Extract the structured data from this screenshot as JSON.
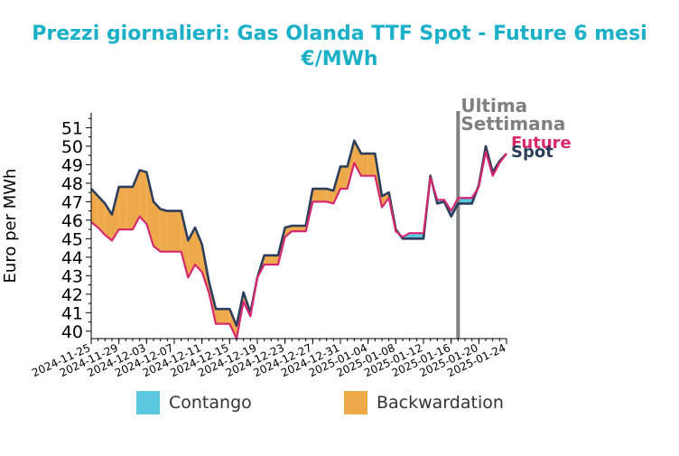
{
  "title": {
    "line1": "Prezzi giornalieri: Gas Olanda TTF Spot - Future 6 mesi",
    "line2": "€/MWh"
  },
  "colors": {
    "title": "#1bb0c8",
    "spot": "#2c3e5c",
    "future": "#d6286e",
    "contango": "#5bc8e0",
    "backwardation": "#eeaa4a",
    "marker": "#808080",
    "axis": "#000000"
  },
  "legend": [
    {
      "label": "Contango",
      "color": "#5bc8e0"
    },
    {
      "label": "Backwardation",
      "color": "#eeaa4a"
    }
  ],
  "chart_data": {
    "type": "line",
    "ylabel": "Euro per MWh",
    "xlabel": "",
    "ylim": [
      39.6,
      51.8
    ],
    "yticks": [
      40,
      41,
      42,
      43,
      44,
      45,
      46,
      47,
      48,
      49,
      50,
      51
    ],
    "xlim": [
      "2024-11-25",
      "2025-01-24"
    ],
    "xticks": [
      "2024-11-25",
      "2024-11-29",
      "2024-12-03",
      "2024-12-07",
      "2024-12-11",
      "2024-12-15",
      "2024-12-19",
      "2024-12-23",
      "2024-12-27",
      "2024-12-31",
      "2025-01-04",
      "2025-01-08",
      "2025-01-12",
      "2025-01-16",
      "2025-01-20",
      "2025-01-24"
    ],
    "marker": {
      "date": "2025-01-17",
      "label_line1": "Ultima",
      "label_line2": "Settimana"
    },
    "series_labels": {
      "future": "Future",
      "spot": "Spot"
    },
    "x": [
      "2024-11-25",
      "2024-11-26",
      "2024-11-27",
      "2024-11-28",
      "2024-11-29",
      "2024-11-30",
      "2024-12-01",
      "2024-12-02",
      "2024-12-03",
      "2024-12-04",
      "2024-12-05",
      "2024-12-06",
      "2024-12-07",
      "2024-12-08",
      "2024-12-09",
      "2024-12-10",
      "2024-12-11",
      "2024-12-12",
      "2024-12-13",
      "2024-12-14",
      "2024-12-15",
      "2024-12-16",
      "2024-12-17",
      "2024-12-18",
      "2024-12-19",
      "2024-12-20",
      "2024-12-21",
      "2024-12-22",
      "2024-12-23",
      "2024-12-24",
      "2024-12-25",
      "2024-12-26",
      "2024-12-27",
      "2024-12-28",
      "2024-12-29",
      "2024-12-30",
      "2024-12-31",
      "2025-01-01",
      "2025-01-02",
      "2025-01-03",
      "2025-01-04",
      "2025-01-05",
      "2025-01-06",
      "2025-01-07",
      "2025-01-08",
      "2025-01-09",
      "2025-01-10",
      "2025-01-11",
      "2025-01-12",
      "2025-01-13",
      "2025-01-14",
      "2025-01-15",
      "2025-01-16",
      "2025-01-17",
      "2025-01-18",
      "2025-01-19",
      "2025-01-20",
      "2025-01-21",
      "2025-01-22",
      "2025-01-23",
      "2025-01-24"
    ],
    "series": [
      {
        "name": "Spot",
        "values": [
          47.7,
          47.3,
          46.9,
          46.3,
          47.8,
          47.8,
          47.8,
          48.7,
          48.6,
          47.0,
          46.6,
          46.5,
          46.5,
          46.5,
          44.9,
          45.6,
          44.7,
          42.7,
          41.2,
          41.2,
          41.2,
          40.3,
          42.1,
          41.0,
          42.9,
          44.1,
          44.1,
          44.1,
          45.6,
          45.7,
          45.7,
          45.7,
          47.7,
          47.7,
          47.7,
          47.6,
          48.9,
          48.9,
          50.3,
          49.6,
          49.6,
          49.6,
          47.3,
          47.5,
          45.5,
          45.0,
          45.0,
          45.0,
          45.0,
          48.4,
          46.9,
          47.0,
          46.2,
          46.9,
          46.9,
          46.9,
          47.9,
          50.0,
          48.6,
          49.2,
          49.6
        ]
      },
      {
        "name": "Future",
        "values": [
          45.9,
          45.6,
          45.2,
          44.9,
          45.5,
          45.5,
          45.5,
          46.2,
          45.8,
          44.6,
          44.3,
          44.3,
          44.3,
          44.3,
          42.9,
          43.6,
          43.2,
          42.1,
          40.4,
          40.4,
          40.4,
          39.6,
          41.6,
          40.8,
          42.9,
          43.6,
          43.6,
          43.6,
          45.1,
          45.4,
          45.4,
          45.4,
          47.0,
          47.0,
          47.0,
          46.9,
          47.7,
          47.7,
          49.1,
          48.4,
          48.4,
          48.4,
          46.7,
          47.2,
          45.4,
          45.1,
          45.3,
          45.3,
          45.3,
          48.3,
          47.1,
          47.1,
          46.5,
          47.2,
          47.2,
          47.2,
          47.8,
          49.7,
          48.4,
          49.1,
          49.6
        ]
      }
    ]
  }
}
